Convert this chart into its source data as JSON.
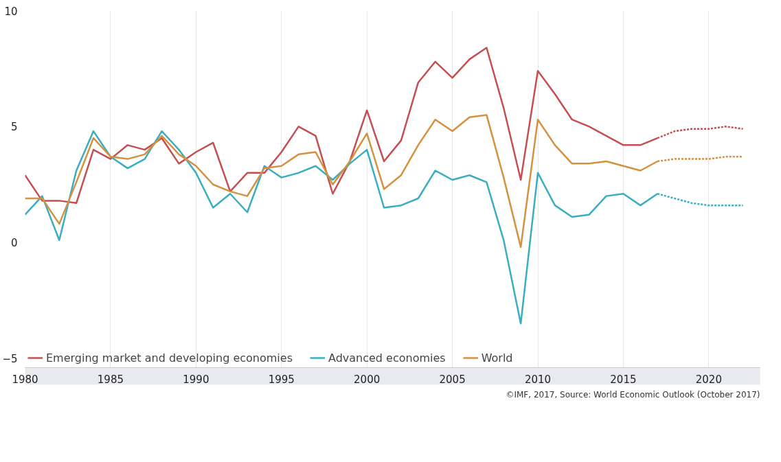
{
  "chart_data": {
    "type": "line",
    "x": [
      1980,
      1981,
      1982,
      1983,
      1984,
      1985,
      1986,
      1987,
      1988,
      1989,
      1990,
      1991,
      1992,
      1993,
      1994,
      1995,
      1996,
      1997,
      1998,
      1999,
      2000,
      2001,
      2002,
      2003,
      2004,
      2005,
      2006,
      2007,
      2008,
      2009,
      2010,
      2011,
      2012,
      2013,
      2014,
      2015,
      2016,
      2017
    ],
    "series": [
      {
        "name": "Emerging market and developing economies",
        "color": "#c44e52",
        "line_style": "solid",
        "values": [
          2.9,
          1.8,
          1.8,
          1.7,
          4.0,
          3.6,
          4.2,
          4.0,
          4.5,
          3.4,
          3.9,
          4.3,
          2.2,
          3.0,
          3.0,
          3.9,
          5.0,
          4.6,
          2.1,
          3.5,
          5.7,
          3.5,
          4.4,
          6.9,
          7.8,
          7.1,
          7.9,
          8.4,
          5.8,
          2.7,
          7.4,
          6.4,
          5.3,
          5.0,
          4.6,
          4.2,
          4.2,
          4.5
        ]
      },
      {
        "name": "Advanced economies",
        "color": "#3aaec0",
        "line_style": "solid",
        "values": [
          1.2,
          2.0,
          0.1,
          3.1,
          4.8,
          3.7,
          3.2,
          3.6,
          4.8,
          4.0,
          3.0,
          1.5,
          2.1,
          1.3,
          3.3,
          2.8,
          3.0,
          3.3,
          2.7,
          3.4,
          4.0,
          1.5,
          1.6,
          1.9,
          3.1,
          2.7,
          2.9,
          2.6,
          0.1,
          -3.5,
          3.0,
          1.6,
          1.1,
          1.2,
          2.0,
          2.1,
          1.6,
          2.1
        ]
      },
      {
        "name": "World",
        "color": "#d4913f",
        "line_style": "solid",
        "values": [
          1.9,
          1.9,
          0.8,
          2.6,
          4.5,
          3.7,
          3.6,
          3.8,
          4.6,
          3.8,
          3.3,
          2.5,
          2.2,
          2.0,
          3.2,
          3.3,
          3.8,
          3.9,
          2.5,
          3.5,
          4.7,
          2.3,
          2.9,
          4.2,
          5.3,
          4.8,
          5.4,
          5.5,
          2.8,
          -0.2,
          5.3,
          4.2,
          3.4,
          3.4,
          3.5,
          3.3,
          3.1,
          3.5
        ]
      },
      {
        "color": "#c44e52",
        "line_style": "dotted",
        "x": [
          2017,
          2018,
          2019,
          2020,
          2021,
          2022
        ],
        "values": [
          4.5,
          4.8,
          4.9,
          4.9,
          5.0,
          4.9
        ]
      },
      {
        "color": "#3aaec0",
        "line_style": "dotted",
        "x": [
          2017,
          2018,
          2019,
          2020,
          2021,
          2022
        ],
        "values": [
          2.1,
          1.9,
          1.7,
          1.6,
          1.6,
          1.6
        ]
      },
      {
        "color": "#d4913f",
        "line_style": "dotted",
        "x": [
          2017,
          2018,
          2019,
          2020,
          2021,
          2022
        ],
        "values": [
          3.5,
          3.6,
          3.6,
          3.6,
          3.7,
          3.7
        ]
      }
    ],
    "xlim": [
      1980,
      2023
    ],
    "xticks": [
      1980,
      1985,
      1990,
      1995,
      2000,
      2005,
      2010,
      2015,
      2020
    ],
    "ylim": [
      -5.4,
      10
    ],
    "yticks": [
      -5,
      0,
      5,
      10
    ],
    "grid": "x",
    "legend": "bottom",
    "marker": "none",
    "annotations": [
      "©IMF, 2017, Source: World Economic Outlook (October 2017)"
    ]
  }
}
